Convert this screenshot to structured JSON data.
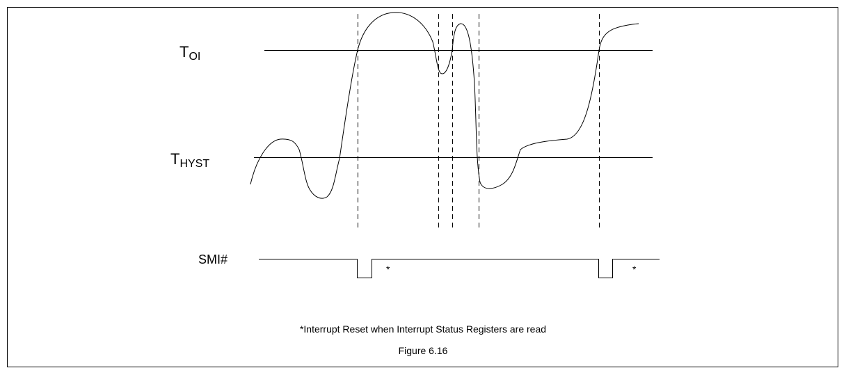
{
  "labels": {
    "toi": {
      "main": "T",
      "sub": "OI"
    },
    "thyst": {
      "main": "T",
      "sub": "HYST"
    },
    "smi": "SMI#",
    "asterisks": [
      "*",
      "*"
    ]
  },
  "caption": "*Interrupt Reset when Interrupt Status Registers are read",
  "figure": "Figure 6.16"
}
